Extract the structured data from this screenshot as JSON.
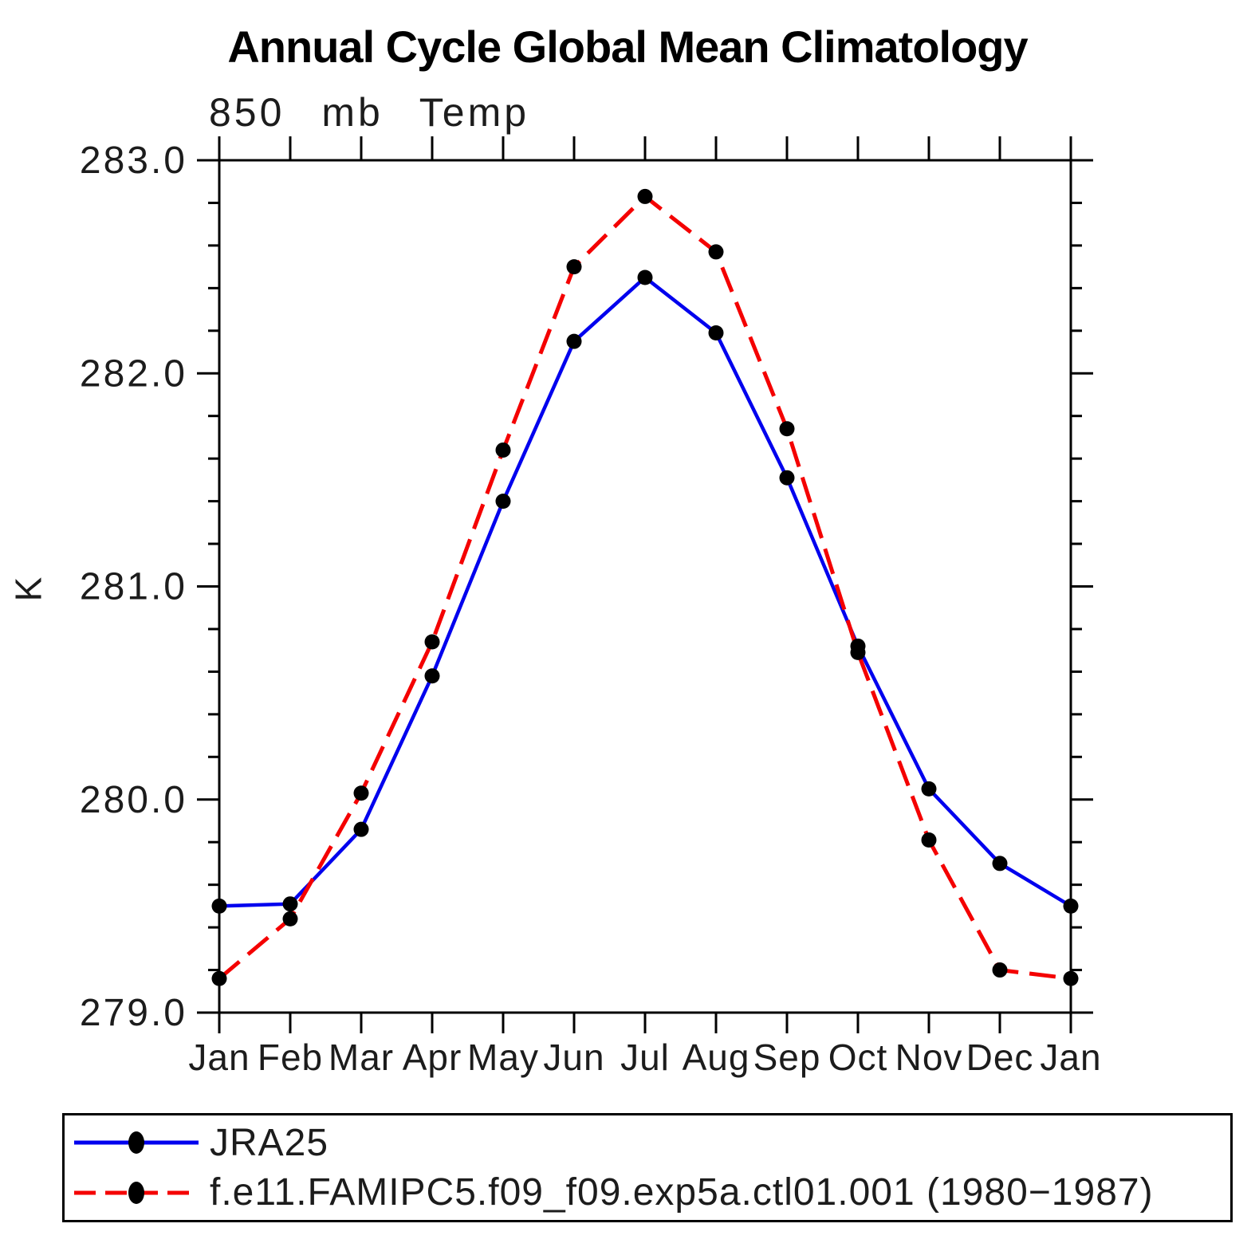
{
  "title": "Annual Cycle Global Mean Climatology",
  "subtitle": "850 mb Temp",
  "chart_data": {
    "type": "line",
    "categories": [
      "Jan",
      "Feb",
      "Mar",
      "Apr",
      "May",
      "Jun",
      "Jul",
      "Aug",
      "Sep",
      "Oct",
      "Nov",
      "Dec",
      "Jan"
    ],
    "series": [
      {
        "name": "JRA25",
        "color": "#0000ee",
        "line_style": "solid",
        "marker": "circle",
        "marker_color": "#000000",
        "values": [
          279.5,
          279.51,
          279.86,
          280.58,
          281.4,
          282.15,
          282.45,
          282.19,
          281.51,
          280.72,
          280.05,
          279.7,
          279.5
        ]
      },
      {
        "name": "f.e11.FAMIPC5.f09_f09.exp5a.ctl01.001 (1980−1987)",
        "color": "#f40000",
        "line_style": "dashed",
        "marker": "circle",
        "marker_color": "#000000",
        "values": [
          279.16,
          279.44,
          280.03,
          280.74,
          281.64,
          282.5,
          282.83,
          282.57,
          281.74,
          280.69,
          279.81,
          279.2,
          279.16
        ]
      }
    ],
    "ylabel": "K",
    "xlabel": "",
    "ylim": [
      279.0,
      283.0
    ],
    "ytick_major": 1.0,
    "ytick_minor": 0.2,
    "ytick_labels": [
      "279.0",
      "280.0",
      "281.0",
      "282.0",
      "283.0"
    ],
    "grid": false,
    "legend_position": "bottom"
  }
}
